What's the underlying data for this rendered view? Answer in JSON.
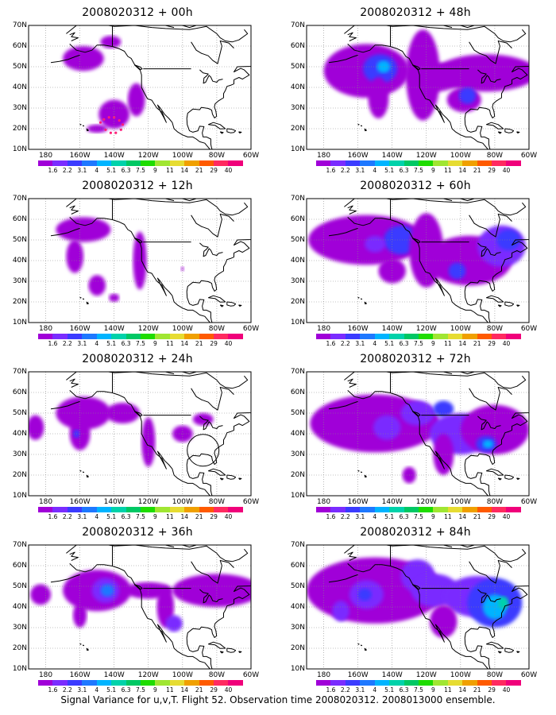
{
  "run_id": "2008020312",
  "panels": [
    {
      "title": "2008020312 + 00h",
      "lead": "00h"
    },
    {
      "title": "2008020312 + 48h",
      "lead": "48h"
    },
    {
      "title": "2008020312 + 12h",
      "lead": "12h"
    },
    {
      "title": "2008020312 + 60h",
      "lead": "60h"
    },
    {
      "title": "2008020312 + 24h",
      "lead": "24h"
    },
    {
      "title": "2008020312 + 72h",
      "lead": "72h"
    },
    {
      "title": "2008020312 + 36h",
      "lead": "36h"
    },
    {
      "title": "2008020312 + 84h",
      "lead": "84h"
    }
  ],
  "lat_labels": [
    "70N",
    "60N",
    "50N",
    "40N",
    "30N",
    "20N",
    "10N"
  ],
  "lon_labels": [
    "180",
    "160W",
    "140W",
    "120W",
    "100W",
    "80W",
    "60W"
  ],
  "colorbar": {
    "labels": [
      "1.6",
      "2.2",
      "3.1",
      "4",
      "5.1",
      "6.3",
      "7.5",
      "9",
      "11",
      "14",
      "21",
      "29",
      "40"
    ],
    "colors": [
      "#a000d8",
      "#7a2cff",
      "#3b3bff",
      "#1e78ff",
      "#00b4ff",
      "#00d2aa",
      "#00c864",
      "#1edc00",
      "#a0e632",
      "#e6dc32",
      "#f0a000",
      "#ff5a00",
      "#ff2a60",
      "#f0007a"
    ]
  },
  "caption": "Signal Variance for u,v,T. Flight 52. Observation time 2008020312. 2008013000 ensemble."
}
